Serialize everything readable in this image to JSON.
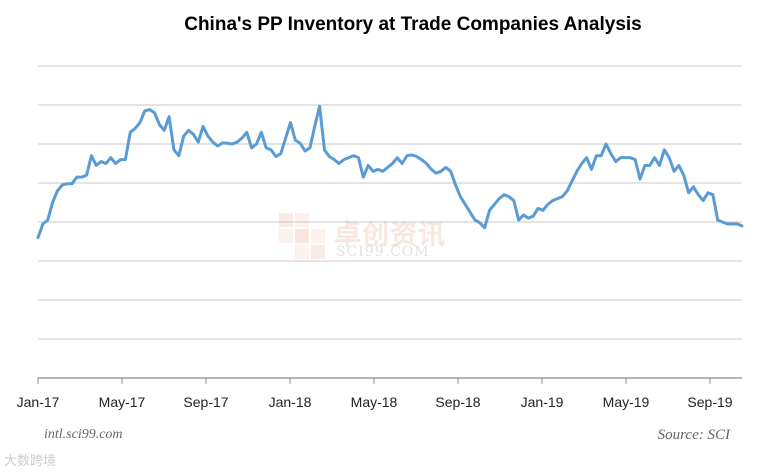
{
  "chart_data": {
    "type": "line",
    "title": "China's PP Inventory at Trade Companies Analysis",
    "xlabel": "",
    "ylabel": "",
    "x_tick_labels": [
      "Jan-17",
      "May-17",
      "Sep-17",
      "Jan-18",
      "May-18",
      "Sep-18",
      "Jan-19",
      "May-19",
      "Sep-19"
    ],
    "y_tick_labels": [],
    "ylim": [
      0,
      8
    ],
    "grid": true,
    "series": [
      {
        "name": "PP Inventory",
        "color": "#5b9bd5",
        "values": [
          3.6,
          3.95,
          4.05,
          4.5,
          4.8,
          4.95,
          4.98,
          4.98,
          5.15,
          5.15,
          5.2,
          5.7,
          5.45,
          5.55,
          5.5,
          5.65,
          5.5,
          5.6,
          5.6,
          6.3,
          6.4,
          6.55,
          6.85,
          6.88,
          6.8,
          6.5,
          6.35,
          6.7,
          5.85,
          5.7,
          6.2,
          6.35,
          6.25,
          6.05,
          6.45,
          6.2,
          6.05,
          5.95,
          6.03,
          6.02,
          6.0,
          6.05,
          6.15,
          6.3,
          5.9,
          6.0,
          6.3,
          5.9,
          5.85,
          5.68,
          5.75,
          6.15,
          6.55,
          6.1,
          6.02,
          5.82,
          5.9,
          6.45,
          6.97,
          5.85,
          5.68,
          5.6,
          5.5,
          5.6,
          5.65,
          5.7,
          5.65,
          5.15,
          5.45,
          5.3,
          5.35,
          5.3,
          5.4,
          5.5,
          5.65,
          5.5,
          5.7,
          5.72,
          5.68,
          5.6,
          5.5,
          5.35,
          5.25,
          5.3,
          5.4,
          5.3,
          4.95,
          4.65,
          4.45,
          4.25,
          4.05,
          3.98,
          3.85,
          4.3,
          4.45,
          4.6,
          4.7,
          4.65,
          4.55,
          4.05,
          4.18,
          4.1,
          4.15,
          4.35,
          4.3,
          4.45,
          4.55,
          4.6,
          4.65,
          4.8,
          5.05,
          5.3,
          5.5,
          5.65,
          5.35,
          5.7,
          5.7,
          6.0,
          5.75,
          5.55,
          5.65,
          5.65,
          5.65,
          5.6,
          5.1,
          5.45,
          5.45,
          5.65,
          5.45,
          5.85,
          5.65,
          5.3,
          5.45,
          5.2,
          4.75,
          4.9,
          4.7,
          4.55,
          4.75,
          4.7,
          4.05,
          4.0,
          3.95,
          3.95,
          3.95,
          3.9
        ]
      }
    ]
  },
  "footer": {
    "left": "intl.sci99.com",
    "right": "Source: SCI"
  },
  "watermark": {
    "main": "卓创资讯",
    "sub": "SCI99.COM",
    "corner": "大数跨境"
  }
}
